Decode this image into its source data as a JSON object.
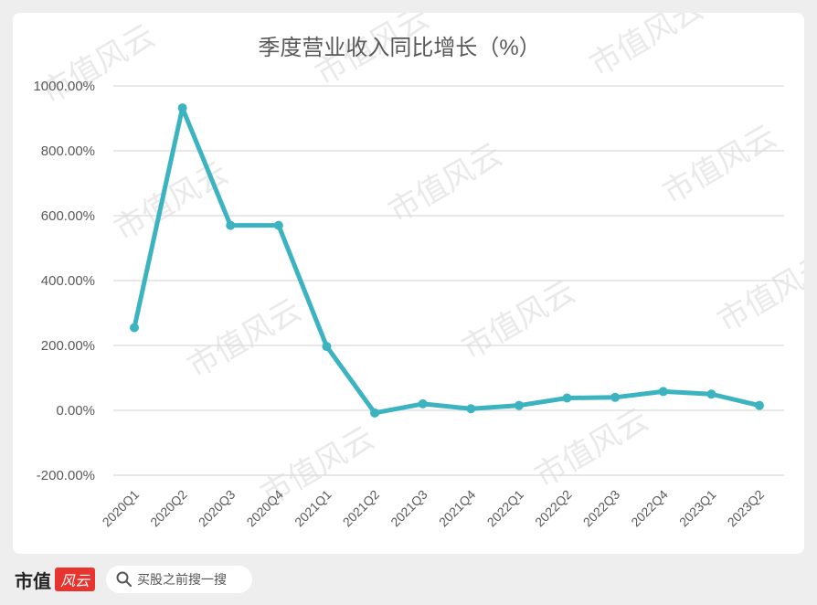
{
  "chart_data": {
    "type": "line",
    "title": "季度营业收入同比增长（%）",
    "categories": [
      "2020Q1",
      "2020Q2",
      "2020Q3",
      "2020Q4",
      "2021Q1",
      "2021Q2",
      "2021Q3",
      "2021Q4",
      "2022Q1",
      "2022Q2",
      "2022Q3",
      "2022Q4",
      "2023Q1",
      "2023Q2"
    ],
    "values": [
      255,
      932,
      570,
      570,
      197,
      -8,
      20,
      5,
      15,
      38,
      40,
      58,
      50,
      15
    ],
    "ylim": [
      -200,
      1000
    ],
    "yticks": [
      -200,
      0,
      200,
      400,
      600,
      800,
      1000
    ],
    "ytick_labels": [
      "-200.00%",
      "0.00%",
      "200.00%",
      "400.00%",
      "600.00%",
      "800.00%",
      "1000.00%"
    ],
    "grid": true,
    "legend": "none",
    "line_color": "#3cb3c0"
  },
  "watermark": "市值风云",
  "footer": {
    "brand_name": "市值",
    "brand_badge": "风云",
    "search_placeholder": "买股之前搜一搜"
  }
}
